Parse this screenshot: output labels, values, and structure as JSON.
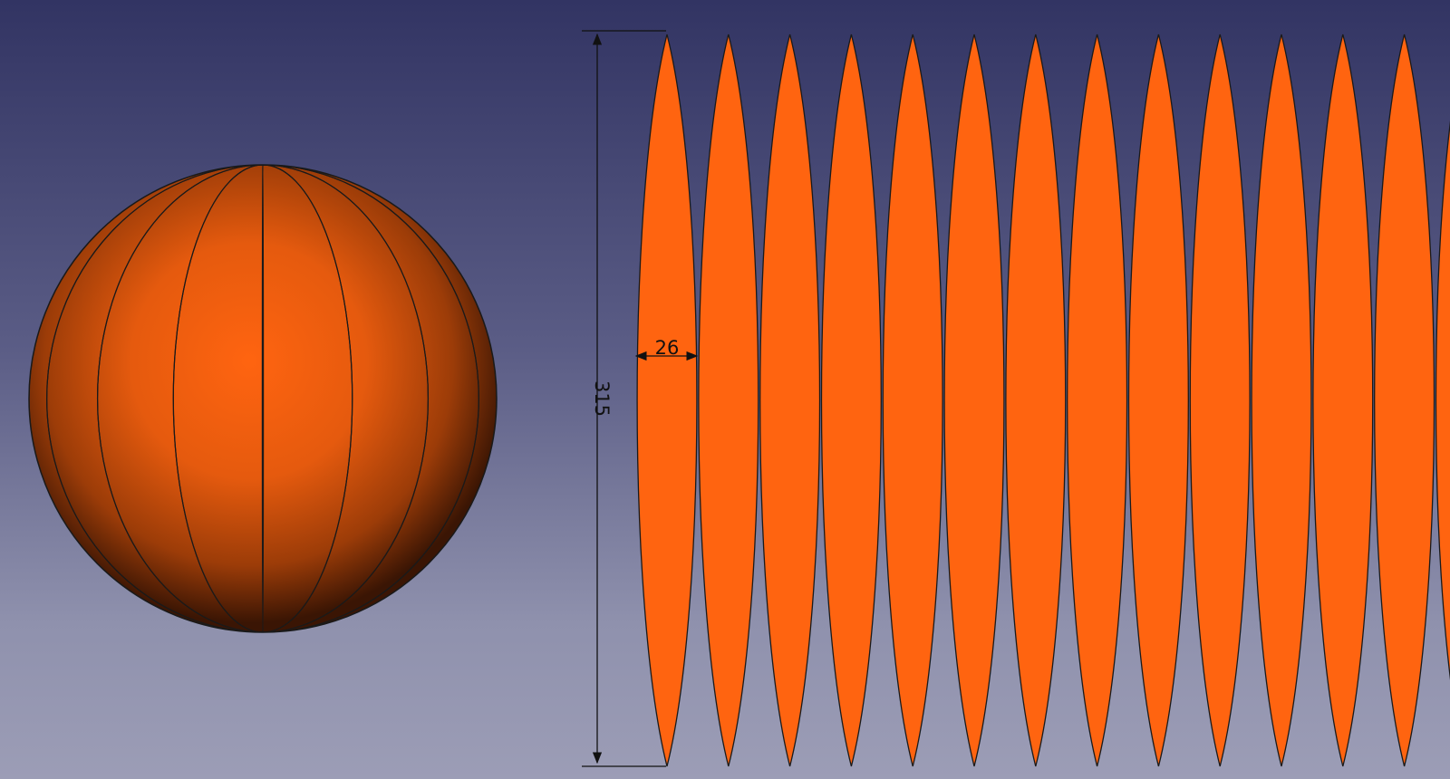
{
  "view": {
    "background_top": "#323463",
    "background_bottom": "#9c9db6"
  },
  "model": {
    "sphere_gores": 16,
    "flat_gore_count_visible": 14,
    "gore_color": "#ff6410",
    "edge_color": "#1a1a1a"
  },
  "dimensions": {
    "gore_width": "26",
    "gore_length": "315"
  }
}
